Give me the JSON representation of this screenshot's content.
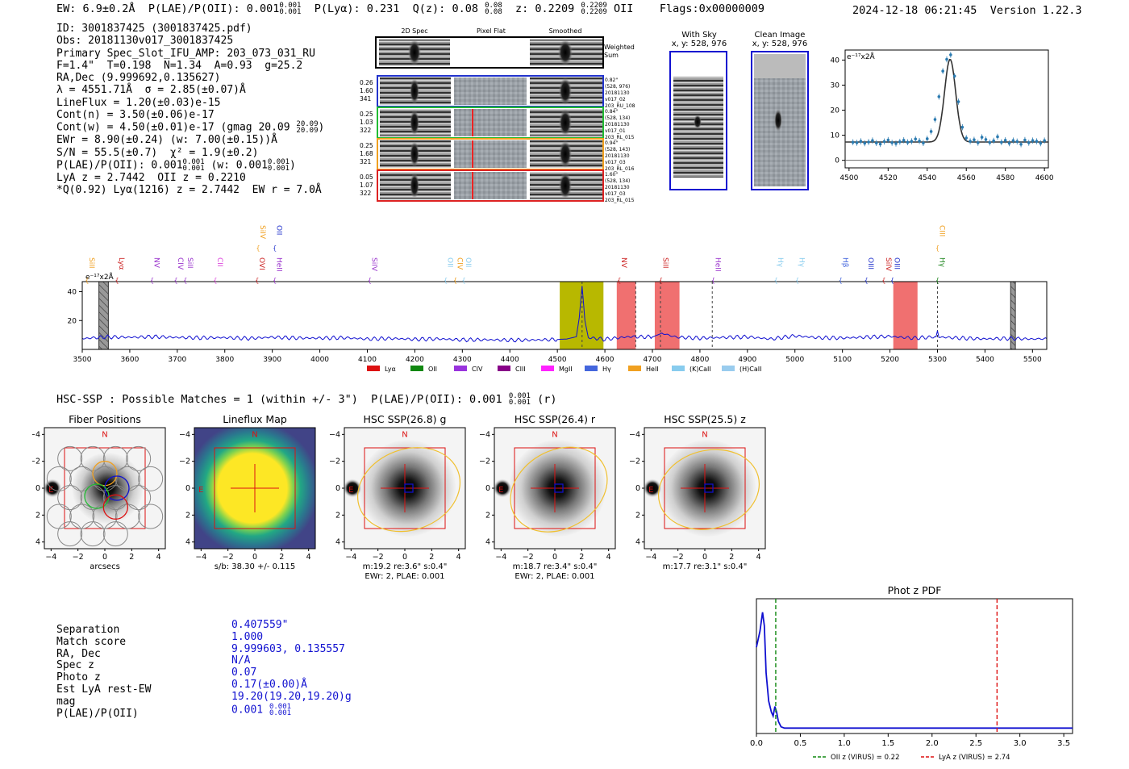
{
  "header": {
    "ew": "EW: 6.9±0.2Å",
    "plae": "P(LAE)/P(OII): 0.001",
    "plae_hi": "0.001",
    "plae_lo": "0.001",
    "plya": "P(Lyα): 0.231",
    "qz": "Q(z): 0.08",
    "qz_hi": "0.08",
    "qz_lo": "0.08",
    "z": "z: 0.2209",
    "z_hi": "0.2209",
    "z_lo": "0.2209",
    "z_line": "OII",
    "flags": "Flags:0x00000009",
    "timestamp": "2024-12-18 06:21:45",
    "version": "Version 1.22.3"
  },
  "info": {
    "id": "ID: 3001837425 (3001837425.pdf)",
    "obs": "Obs: 20181130v017_3001837425",
    "primary": "Primary Spec_Slot_IFU_AMP: 203_073_031_RU",
    "fiber": "F=1.4\"  T=0.198  N=1.34  A=0.93  g=25.2",
    "radec": "RA,Dec (9.999692,0.135627)",
    "lambda": "λ = 4551.71Å  σ = 2.85(±0.07)Å",
    "lineflux": "LineFlux = 1.20(±0.03)e-15",
    "contn": "Cont(n) = 3.50(±0.06)e-17",
    "contw": "Cont(w) = 4.50(±0.01)e-17 (gmag 20.09",
    "contw_hi": "20.09",
    "contw_lo": "20.09",
    "ewr": "EWr = 8.90(±0.24) (w: 7.00(±0.15))Å",
    "sn": "S/N = 55.5(±0.7)  χ² = 1.9(±0.2)",
    "plae": "P(LAE)/P(OII): 0.001",
    "plae_w": "(w: 0.001",
    "lya": "LyA z = 2.7442  OII z = 0.2210",
    "q": "*Q(0.92) Lyα(1216) z = 2.7442  EW r = 7.0Å"
  },
  "cutouts": {
    "col_2d": "2D Spec",
    "col_flat": "Pixel Flat",
    "col_smooth": "Smoothed",
    "weighted": "Weighted",
    "sum": "Sum",
    "rows": [
      {
        "w1": "0.26",
        "w2": "1.60",
        "w3": "341",
        "color": "#2233cc",
        "d1": "0.82\"",
        "d2": "(528, 976)",
        "d3": "20181130",
        "d4": "v017_02",
        "d5": "203_RU_108"
      },
      {
        "w1": "0.25",
        "w2": "1.03",
        "w3": "322",
        "color": "#22bb33",
        "d1": "0.84\"",
        "d2": "(528, 134)",
        "d3": "20181130",
        "d4": "v017_01",
        "d5": "203_RL_015"
      },
      {
        "w1": "0.25",
        "w2": "1.68",
        "w3": "321",
        "color": "#f0a020",
        "d1": "0.94\"",
        "d2": "(528, 143)",
        "d3": "20181130",
        "d4": "v017_03",
        "d5": "203_RL_016"
      },
      {
        "w1": "0.05",
        "w2": "1.07",
        "w3": "322",
        "color": "#dd2222",
        "d1": "1.60\"",
        "d2": "(528, 134)",
        "d3": "20181130",
        "d4": "v017_03",
        "d5": "203_RL_015"
      }
    ],
    "with_sky": "With Sky",
    "with_sky_xy": "x, y: 528, 976",
    "clean": "Clean Image",
    "clean_xy": "x, y: 528, 976"
  },
  "chart_data": [
    {
      "type": "scatter",
      "title": "line fit",
      "unit_label": "e⁻¹⁷x2Å",
      "xlim": [
        4498,
        4602
      ],
      "ylim": [
        -3,
        44
      ],
      "xticks": [
        4500,
        4520,
        4540,
        4560,
        4580,
        4600
      ],
      "yticks": [
        0,
        10,
        20,
        30,
        40
      ],
      "x": [
        4502,
        4504,
        4506,
        4508,
        4510,
        4512,
        4514,
        4516,
        4518,
        4520,
        4522,
        4524,
        4526,
        4528,
        4530,
        4532,
        4534,
        4536,
        4538,
        4540,
        4542,
        4544,
        4546,
        4548,
        4550,
        4552,
        4554,
        4556,
        4558,
        4560,
        4562,
        4564,
        4566,
        4568,
        4570,
        4572,
        4574,
        4576,
        4578,
        4580,
        4582,
        4584,
        4586,
        4588,
        4590,
        4592,
        4594,
        4596,
        4598,
        4600
      ],
      "values": [
        7.2,
        7.0,
        7.6,
        6.8,
        7.3,
        7.9,
        6.9,
        6.5,
        7.5,
        8.1,
        7.0,
        6.7,
        7.4,
        8.0,
        7.2,
        7.6,
        8.5,
        7.7,
        6.9,
        8.6,
        11.5,
        16.3,
        25.4,
        35.6,
        40.3,
        42.1,
        33.6,
        23.4,
        13.2,
        8.9,
        7.6,
        8.2,
        7.0,
        9.2,
        8.3,
        7.1,
        7.8,
        9.4,
        7.2,
        8.0,
        6.8,
        7.9,
        7.5,
        6.4,
        8.1,
        7.0,
        7.9,
        7.6,
        6.8,
        7.9
      ],
      "fit": {
        "continuum": 7.3,
        "amplitude": 33.0,
        "center": 4551.71,
        "sigma": 2.85
      }
    },
    {
      "type": "line",
      "title": "full spectrum",
      "unit_label": "e⁻¹⁷x2Å",
      "xlim": [
        3500,
        5530
      ],
      "ylim": [
        0,
        47
      ],
      "xticks": [
        3500,
        3600,
        3700,
        3800,
        3900,
        4000,
        4100,
        4200,
        4300,
        4400,
        4500,
        4600,
        4700,
        4800,
        4900,
        5000,
        5100,
        5200,
        5300,
        5400,
        5500
      ],
      "yticks": [
        20,
        40
      ],
      "x": [
        3500,
        3550,
        3600,
        3650,
        3700,
        3750,
        3800,
        3850,
        3900,
        3950,
        4000,
        4050,
        4100,
        4150,
        4200,
        4250,
        4300,
        4350,
        4400,
        4450,
        4500,
        4520,
        4540,
        4546,
        4552,
        4558,
        4565,
        4600,
        4650,
        4700,
        4720,
        4750,
        4800,
        4850,
        4900,
        4950,
        5000,
        5050,
        5100,
        5150,
        5200,
        5250,
        5297,
        5300,
        5303,
        5350,
        5400,
        5450,
        5500,
        5530
      ],
      "values": [
        7.5,
        8.6,
        8.4,
        8.8,
        8.3,
        8.0,
        8.2,
        7.6,
        8.5,
        7.9,
        7.8,
        8.1,
        7.2,
        7.6,
        7.0,
        7.3,
        6.6,
        6.7,
        6.4,
        6.5,
        6.9,
        7.2,
        8.8,
        22,
        44,
        20,
        8.1,
        7.0,
        8.8,
        8.6,
        11.2,
        8.5,
        7.8,
        8.3,
        8.7,
        7.2,
        9.4,
        8.1,
        7.9,
        8.5,
        9.0,
        7.8,
        8.7,
        13.0,
        8.6,
        7.8,
        7.3,
        7.6,
        7.2,
        7.5
      ],
      "shaded": [
        {
          "x0": 4505,
          "x1": 4597,
          "color": "#b8b800"
        },
        {
          "x0": 4625,
          "x1": 4665,
          "color": "#f07070"
        },
        {
          "x0": 4705,
          "x1": 4757,
          "color": "#f07070"
        },
        {
          "x0": 5207,
          "x1": 5258,
          "color": "#f07070"
        },
        {
          "x0": 3535,
          "x1": 3555,
          "color": "#999999"
        },
        {
          "x0": 3454,
          "x1": 3464,
          "color": "#999999"
        }
      ],
      "dashed_lines": [
        4552,
        4665,
        4717,
        4826,
        5300
      ],
      "line_labels": [
        {
          "label": "SiII",
          "x": 3510,
          "color": "#f0a020",
          "row": "low"
        },
        {
          "label": "Lyα",
          "x": 3573,
          "color": "#cc2222",
          "row": "low"
        },
        {
          "label": "NV",
          "x": 3647,
          "color": "#9933cc",
          "row": "low"
        },
        {
          "label": "CIV",
          "x": 3697,
          "color": "#9933cc",
          "row": "low"
        },
        {
          "label": "SiII",
          "x": 3717,
          "color": "#9933cc",
          "row": "low"
        },
        {
          "label": "CII",
          "x": 3780,
          "color": "#dd44dd",
          "row": "low"
        },
        {
          "label": "OVI",
          "x": 3868,
          "color": "#cc2222",
          "row": "low"
        },
        {
          "label": "SiIV",
          "x": 3870,
          "color": "#f0a020",
          "row": "high"
        },
        {
          "label": "HeII",
          "x": 3905,
          "color": "#9933cc",
          "row": "low"
        },
        {
          "label": "OII",
          "x": 3905,
          "color": "#2233cc",
          "row": "high"
        },
        {
          "label": "SiIV",
          "x": 4105,
          "color": "#9933cc",
          "row": "low"
        },
        {
          "label": "OII",
          "x": 4265,
          "color": "#88ccee",
          "row": "low"
        },
        {
          "label": "CIV",
          "x": 4285,
          "color": "#f0a020",
          "row": "low"
        },
        {
          "label": "OII",
          "x": 4303,
          "color": "#88ccee",
          "row": "low"
        },
        {
          "label": "NV",
          "x": 4630,
          "color": "#cc2222",
          "row": "low"
        },
        {
          "label": "SiII",
          "x": 4718,
          "color": "#cc2222",
          "row": "low"
        },
        {
          "label": "HeII",
          "x": 4828,
          "color": "#9933cc",
          "row": "low"
        },
        {
          "label": "Hγ",
          "x": 4960,
          "color": "#88ccee",
          "row": "low"
        },
        {
          "label": "Hγ",
          "x": 5005,
          "color": "#88ccee",
          "row": "low"
        },
        {
          "label": "Hβ",
          "x": 5096,
          "color": "#4466dd",
          "row": "low"
        },
        {
          "label": "OIII",
          "x": 5150,
          "color": "#2233cc",
          "row": "low"
        },
        {
          "label": "SiIV",
          "x": 5187,
          "color": "#cc2222",
          "row": "low"
        },
        {
          "label": "OIII",
          "x": 5205,
          "color": "#2233cc",
          "row": "low"
        },
        {
          "label": "Hγ",
          "x": 5300,
          "color": "#228822",
          "row": "low"
        },
        {
          "label": "CIII",
          "x": 5300,
          "color": "#f0a020",
          "row": "high"
        }
      ],
      "legend": [
        {
          "label": "Lyα",
          "color": "#dd1111"
        },
        {
          "label": "OII",
          "color": "#118811"
        },
        {
          "label": "CIV",
          "color": "#9933dd"
        },
        {
          "label": "CIII",
          "color": "#880088"
        },
        {
          "label": "MgII",
          "color": "#ff22ff"
        },
        {
          "label": "Hγ",
          "color": "#4466dd"
        },
        {
          "label": "HeII",
          "color": "#f0a020"
        },
        {
          "label": "(K)CaII",
          "color": "#88ccee"
        },
        {
          "label": "(H)CaII",
          "color": "#99ccee"
        }
      ]
    },
    {
      "type": "line",
      "title": "Phot z PDF",
      "xlim": [
        0.0,
        3.6
      ],
      "ylim": [
        0,
        1.0
      ],
      "xticks": [
        0.0,
        0.5,
        1.0,
        1.5,
        2.0,
        2.5,
        3.0,
        3.5
      ],
      "x": [
        0.0,
        0.04,
        0.07,
        0.09,
        0.11,
        0.14,
        0.17,
        0.19,
        0.21,
        0.23,
        0.25,
        0.28,
        0.32,
        0.4,
        0.6,
        1.0,
        1.5,
        2.0,
        2.5,
        3.0,
        3.6
      ],
      "values": [
        0.64,
        0.76,
        0.9,
        0.8,
        0.45,
        0.24,
        0.16,
        0.13,
        0.2,
        0.16,
        0.09,
        0.05,
        0.04,
        0.04,
        0.04,
        0.04,
        0.04,
        0.04,
        0.04,
        0.04,
        0.04
      ],
      "vlines": [
        {
          "x": 0.22,
          "color": "#118811",
          "label": "OII z (VIRUS) = 0.22"
        },
        {
          "x": 2.74,
          "color": "#dd1111",
          "label": "LyA z (VIRUS) = 2.74"
        }
      ]
    }
  ],
  "hsc": {
    "line_text": "HSC-SSP : Possible Matches = 1 (within +/- 3\")  P(LAE)/P(OII): 0.001",
    "line_hi": "0.001",
    "line_lo": "0.001",
    "line_suffix": "(r)",
    "ticks": [
      "−4",
      "−2",
      "0",
      "2",
      "4"
    ],
    "panels": [
      {
        "title": "Fiber Positions",
        "caption1": "arcsecs",
        "caption2": ""
      },
      {
        "title": "Lineflux Map",
        "caption1": "s/b: 38.30 +/- 0.115",
        "caption2": ""
      },
      {
        "title": "HSC SSP(26.8) g",
        "caption1": "m:19.2  re:3.6\"  s:0.4\"",
        "caption2": "EWr: 2, PLAE: 0.001"
      },
      {
        "title": "HSC SSP(26.4) r",
        "caption1": "m:18.7  re:3.4\"  s:0.4\"",
        "caption2": "EWr: 2, PLAE: 0.001"
      },
      {
        "title": "HSC SSP(25.5) z",
        "caption1": "m:17.7  re:3.1\"  s:0.4\"",
        "caption2": ""
      }
    ],
    "north": "N",
    "east": "E"
  },
  "match": {
    "labels": [
      "Separation",
      "Match score",
      "RA, Dec",
      "Spec z",
      "Photo z",
      "Est LyA rest-EW",
      "mag",
      "P(LAE)/P(OII)"
    ],
    "values": [
      "0.407559\"",
      "1.000",
      "9.999603, 0.135557",
      "N/A",
      "0.07",
      "0.17(±0.00)Å",
      "19.20(19.20,19.20)g",
      "0.001"
    ],
    "plae_hi": "0.001",
    "plae_lo": "0.001"
  },
  "colors": {
    "blue": "#1010d0",
    "red": "#dd1111",
    "yellow": "#f0c030"
  }
}
